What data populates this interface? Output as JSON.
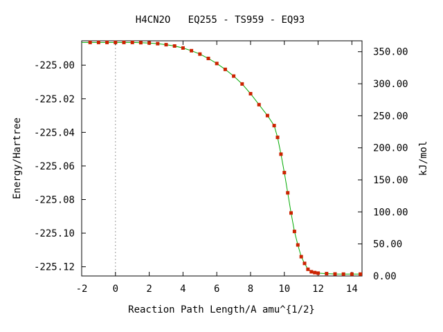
{
  "chart_data": {
    "type": "line",
    "title": "H4CN2O   EQ255 - TS959 - EQ93",
    "xlabel": "Reaction Path Length/A amu^{1/2}",
    "ylabel": "Energy/Hartree",
    "y2label": "kJ/mol",
    "xlim": [
      -2,
      14.6
    ],
    "ylim": [
      -225.1255,
      -224.9855
    ],
    "y2lim": [
      0,
      367
    ],
    "x_ticks": [
      "-2",
      "0",
      "2",
      "4",
      "6",
      "8",
      "10",
      "12",
      "14"
    ],
    "x_tick_values": [
      -2,
      0,
      2,
      4,
      6,
      8,
      10,
      12,
      14
    ],
    "y_ticks": [
      "-225.00",
      "-225.02",
      "-225.04",
      "-225.06",
      "-225.08",
      "-225.10",
      "-225.12"
    ],
    "y_tick_values": [
      -225.0,
      -225.02,
      -225.04,
      -225.06,
      -225.08,
      -225.1,
      -225.12
    ],
    "y2_ticks": [
      "0.00",
      "50.00",
      "100.00",
      "150.00",
      "200.00",
      "250.00",
      "300.00",
      "350.00"
    ],
    "y2_tick_values": [
      0,
      50,
      100,
      150,
      200,
      250,
      300,
      350
    ],
    "ts_marker_x": 0,
    "grid": false,
    "line_color": "#00aa00",
    "point_color": "#cc2200",
    "ts_line_color": "#999999",
    "series": [
      {
        "x": [
          -2.0,
          -1.5,
          -1.0,
          -0.5,
          0,
          0.5,
          1.0,
          1.5,
          2.0,
          2.5,
          3.0,
          3.5,
          4.0,
          4.5,
          5.0,
          5.5,
          6.0,
          6.5,
          7.0,
          7.5,
          8.0,
          8.5,
          9.0,
          9.4,
          9.6,
          9.8,
          10.0,
          10.2,
          10.4,
          10.6,
          10.8,
          11.0,
          11.2,
          11.4,
          11.6,
          11.8,
          12.0,
          12.5,
          13.0,
          13.5,
          14.0,
          14.5
        ],
        "y": [
          -224.9865,
          -224.9865,
          -224.9865,
          -224.9865,
          -224.9865,
          -224.9865,
          -224.9865,
          -224.9866,
          -224.9868,
          -224.9872,
          -224.9878,
          -224.9886,
          -224.9898,
          -224.9914,
          -224.9934,
          -224.996,
          -224.999,
          -225.0025,
          -225.0065,
          -225.0112,
          -225.017,
          -225.0235,
          -225.03,
          -225.036,
          -225.043,
          -225.053,
          -225.064,
          -225.076,
          -225.088,
          -225.099,
          -225.107,
          -225.114,
          -225.118,
          -225.1215,
          -225.123,
          -225.1235,
          -225.1238,
          -225.1241,
          -225.1243,
          -225.1244,
          -225.1244,
          -225.1244
        ]
      }
    ]
  }
}
